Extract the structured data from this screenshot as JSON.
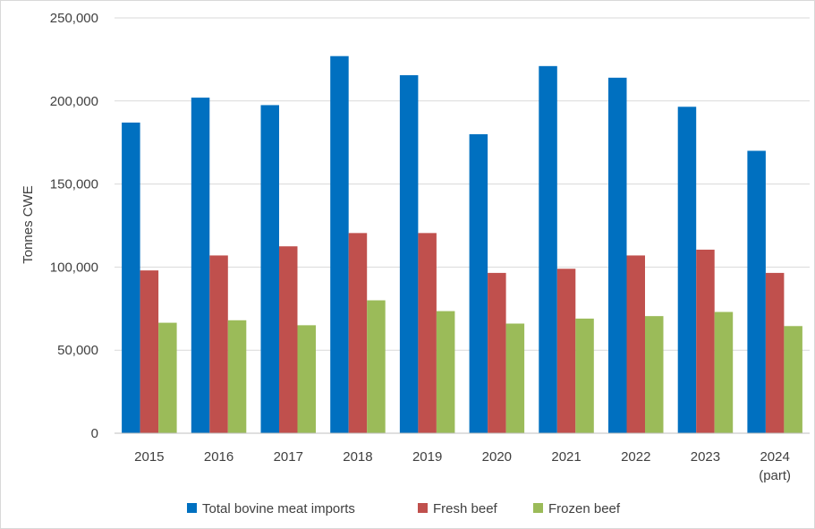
{
  "chart_data": {
    "type": "bar",
    "title": "",
    "xlabel": "",
    "ylabel": "Tonnes CWE",
    "ylim": [
      0,
      250000
    ],
    "yticks": [
      0,
      50000,
      100000,
      150000,
      200000,
      250000
    ],
    "ytick_labels": [
      "0",
      "50,000",
      "100,000",
      "150,000",
      "200,000",
      "250,000"
    ],
    "grid": true,
    "legend_position": "bottom",
    "categories": [
      [
        "2015"
      ],
      [
        "2016"
      ],
      [
        "2017"
      ],
      [
        "2018"
      ],
      [
        "2019"
      ],
      [
        "2020"
      ],
      [
        "2021"
      ],
      [
        "2022"
      ],
      [
        "2023"
      ],
      [
        "2024",
        "(part)"
      ]
    ],
    "series": [
      {
        "name": "Total bovine meat imports",
        "color": "#0070c0",
        "values": [
          187000,
          202000,
          197500,
          227000,
          215500,
          180000,
          221000,
          214000,
          196500,
          170000
        ]
      },
      {
        "name": "Fresh beef",
        "color": "#c0504d",
        "values": [
          98000,
          107000,
          112500,
          120500,
          120500,
          96500,
          99000,
          107000,
          110500,
          96500
        ]
      },
      {
        "name": "Frozen beef",
        "color": "#9bbb59",
        "values": [
          66500,
          68000,
          65000,
          80000,
          73500,
          66000,
          69000,
          70500,
          73000,
          64500
        ]
      }
    ]
  }
}
